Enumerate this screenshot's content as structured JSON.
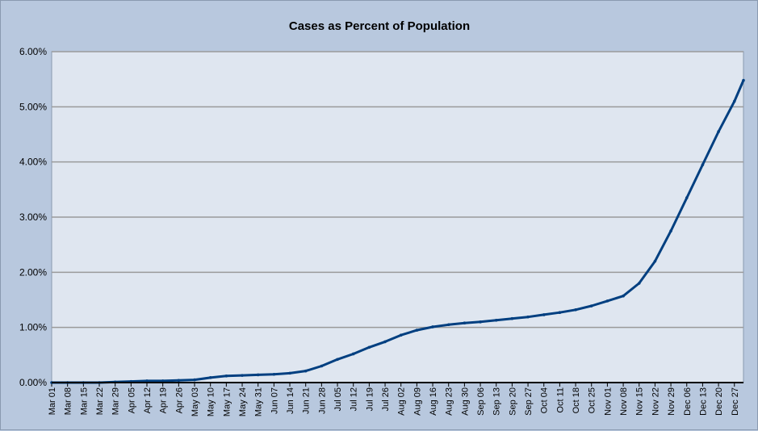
{
  "chart_data": {
    "type": "line",
    "title": "Cases as Percent of Population",
    "xlabel": "",
    "ylabel": "",
    "ylim": [
      0,
      6
    ],
    "y_ticks": [
      "0.00%",
      "1.00%",
      "2.00%",
      "3.00%",
      "4.00%",
      "5.00%",
      "6.00%"
    ],
    "x_tick_labels": [
      "Mar 01",
      "Mar 08",
      "Mar 15",
      "Mar 22",
      "Mar 29",
      "Apr 05",
      "Apr 12",
      "Apr 19",
      "Apr 26",
      "May 03",
      "May 10",
      "May 17",
      "May 24",
      "May 31",
      "Jun 07",
      "Jun 14",
      "Jun 21",
      "Jun 28",
      "Jul 05",
      "Jul 12",
      "Jul 19",
      "Jul 26",
      "Aug 02",
      "Aug 09",
      "Aug 16",
      "Aug 23",
      "Aug 30",
      "Sep 06",
      "Sep 13",
      "Sep 20",
      "Sep 27",
      "Oct 04",
      "Oct 11",
      "Oct 18",
      "Oct 25",
      "Nov 01",
      "Nov 08",
      "Nov 15",
      "Nov 22",
      "Nov 29",
      "Dec 06",
      "Dec 13",
      "Dec 20",
      "Dec 27"
    ],
    "grid": true,
    "legend": "none",
    "line_color": "#003f80",
    "series": [
      {
        "x": [
          "Mar 01",
          "Mar 08",
          "Mar 15",
          "Mar 22",
          "Mar 29",
          "Apr 05",
          "Apr 12",
          "Apr 19",
          "Apr 26",
          "May 03",
          "May 10",
          "May 17",
          "May 24",
          "May 31",
          "Jun 07",
          "Jun 14",
          "Jun 21",
          "Jun 28",
          "Jul 05",
          "Jul 12",
          "Jul 19",
          "Jul 26",
          "Aug 02",
          "Aug 09",
          "Aug 16",
          "Aug 23",
          "Aug 30",
          "Sep 06",
          "Sep 13",
          "Sep 20",
          "Sep 27",
          "Oct 04",
          "Oct 11",
          "Oct 18",
          "Oct 25",
          "Nov 01",
          "Nov 08",
          "Nov 15",
          "Nov 22",
          "Nov 29",
          "Dec 06",
          "Dec 13",
          "Dec 20",
          "Dec 27",
          "Dec 31"
        ],
        "values": [
          0.0,
          0.0,
          0.0,
          0.0,
          0.01,
          0.02,
          0.03,
          0.03,
          0.04,
          0.05,
          0.09,
          0.12,
          0.13,
          0.14,
          0.15,
          0.17,
          0.21,
          0.3,
          0.42,
          0.52,
          0.64,
          0.74,
          0.86,
          0.95,
          1.01,
          1.05,
          1.08,
          1.1,
          1.13,
          1.16,
          1.19,
          1.23,
          1.27,
          1.32,
          1.39,
          1.48,
          1.57,
          1.8,
          2.2,
          2.75,
          3.35,
          3.95,
          4.55,
          5.1,
          5.48
        ]
      }
    ]
  }
}
